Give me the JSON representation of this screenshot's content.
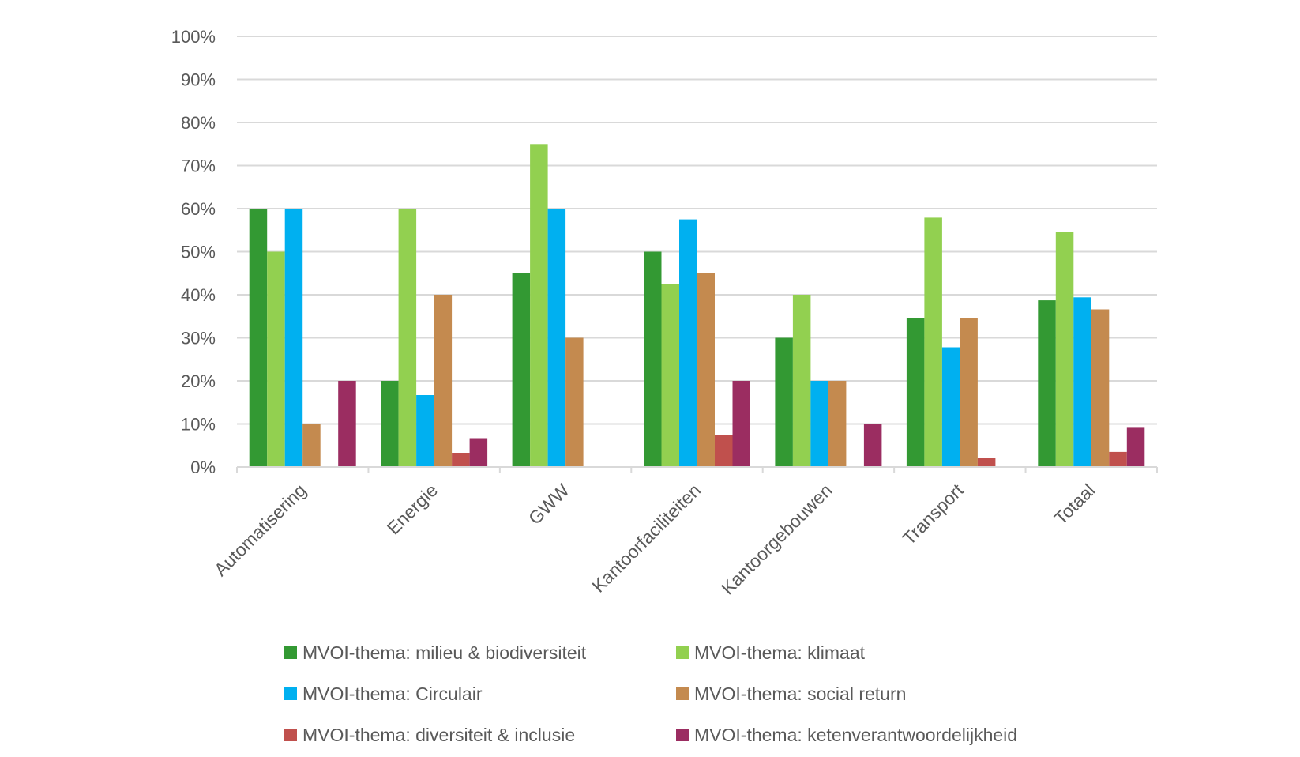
{
  "chart_data": {
    "type": "bar",
    "title": "",
    "xlabel": "",
    "ylabel": "",
    "ylim": [
      0,
      100
    ],
    "y_ticks": [
      "0%",
      "10%",
      "20%",
      "30%",
      "40%",
      "50%",
      "60%",
      "70%",
      "80%",
      "90%",
      "100%"
    ],
    "y_tick_values": [
      0,
      10,
      20,
      30,
      40,
      50,
      60,
      70,
      80,
      90,
      100
    ],
    "grid": true,
    "legend_position": "bottom",
    "categories": [
      "Automatisering",
      "Energie",
      "GWW",
      "Kantoorfaciliteiten",
      "Kantoorgebouwen",
      "Transport",
      "Totaal"
    ],
    "series": [
      {
        "name": "MVOI-thema: milieu & biodiversiteit",
        "color": "#339933",
        "values": [
          60,
          20,
          45,
          50,
          30,
          34.5,
          38.7
        ]
      },
      {
        "name": "MVOI-thema: klimaat",
        "color": "#92D050",
        "values": [
          50,
          60,
          75,
          42.5,
          40,
          57.9,
          54.5
        ]
      },
      {
        "name": "MVOI-thema: Circulair",
        "color": "#00B0F0",
        "values": [
          60,
          16.7,
          60,
          57.5,
          20,
          27.8,
          39.4
        ]
      },
      {
        "name": "MVOI-thema: social return",
        "color": "#C48A4F",
        "values": [
          10,
          40,
          30,
          45,
          20,
          34.5,
          36.6
        ]
      },
      {
        "name": "MVOI-thema: diversiteit & inclusie",
        "color": "#C0504D",
        "values": [
          0,
          3.3,
          0,
          7.5,
          0,
          2.1,
          3.5
        ]
      },
      {
        "name": "MVOI-thema: ketenverantwoordelijkheid",
        "color": "#9B2D61",
        "values": [
          20,
          6.7,
          0,
          20,
          10,
          0,
          9.1
        ]
      }
    ]
  }
}
